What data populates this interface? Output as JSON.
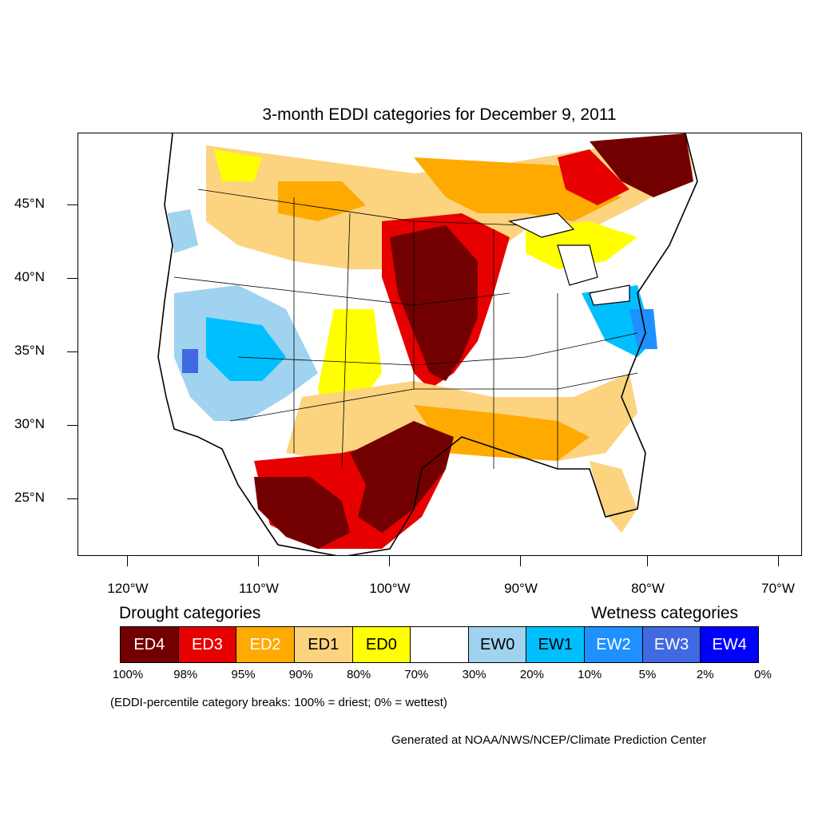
{
  "title": "3-month EDDI categories for December 9, 2011",
  "lat_labels": [
    "45°N",
    "40°N",
    "35°N",
    "30°N",
    "25°N"
  ],
  "lon_labels": [
    "120°W",
    "110°W",
    "100°W",
    "90°W",
    "80°W",
    "70°W"
  ],
  "map": {
    "region": "Contiguous United States",
    "extent": {
      "lon_min": -123.8,
      "lon_max": -68.3,
      "lat_min": 21,
      "lat_max": 49.8
    }
  },
  "legend": {
    "drought_heading": "Drought categories",
    "wetness_heading": "Wetness categories",
    "categories": [
      {
        "label": "ED4",
        "color": "#730000",
        "text_color": "#ffffff"
      },
      {
        "label": "ED3",
        "color": "#e60000",
        "text_color": "#ffffff"
      },
      {
        "label": "ED2",
        "color": "#ffaa00",
        "text_color": "#ffffff"
      },
      {
        "label": "ED1",
        "color": "#fcd37f",
        "text_color": "#000000"
      },
      {
        "label": "ED0",
        "color": "#ffff00",
        "text_color": "#000000"
      },
      {
        "label": "",
        "color": "#ffffff",
        "text_color": "#000000"
      },
      {
        "label": "EW0",
        "color": "#9fd3ef",
        "text_color": "#000000"
      },
      {
        "label": "EW1",
        "color": "#00bfff",
        "text_color": "#000000"
      },
      {
        "label": "EW2",
        "color": "#1e90ff",
        "text_color": "#ffffff"
      },
      {
        "label": "EW3",
        "color": "#4169e1",
        "text_color": "#ffffff"
      },
      {
        "label": "EW4",
        "color": "#0000ff",
        "text_color": "#ffffff"
      }
    ],
    "percentiles": [
      "100%",
      "98%",
      "95%",
      "90%",
      "80%",
      "70%",
      "30%",
      "20%",
      "10%",
      "5%",
      "2%",
      "0%"
    ]
  },
  "note": "(EDDI-percentile category breaks: 100% = driest; 0% = wettest)",
  "credit": "Generated at NOAA/NWS/NCEP/Climate Prediction Center"
}
